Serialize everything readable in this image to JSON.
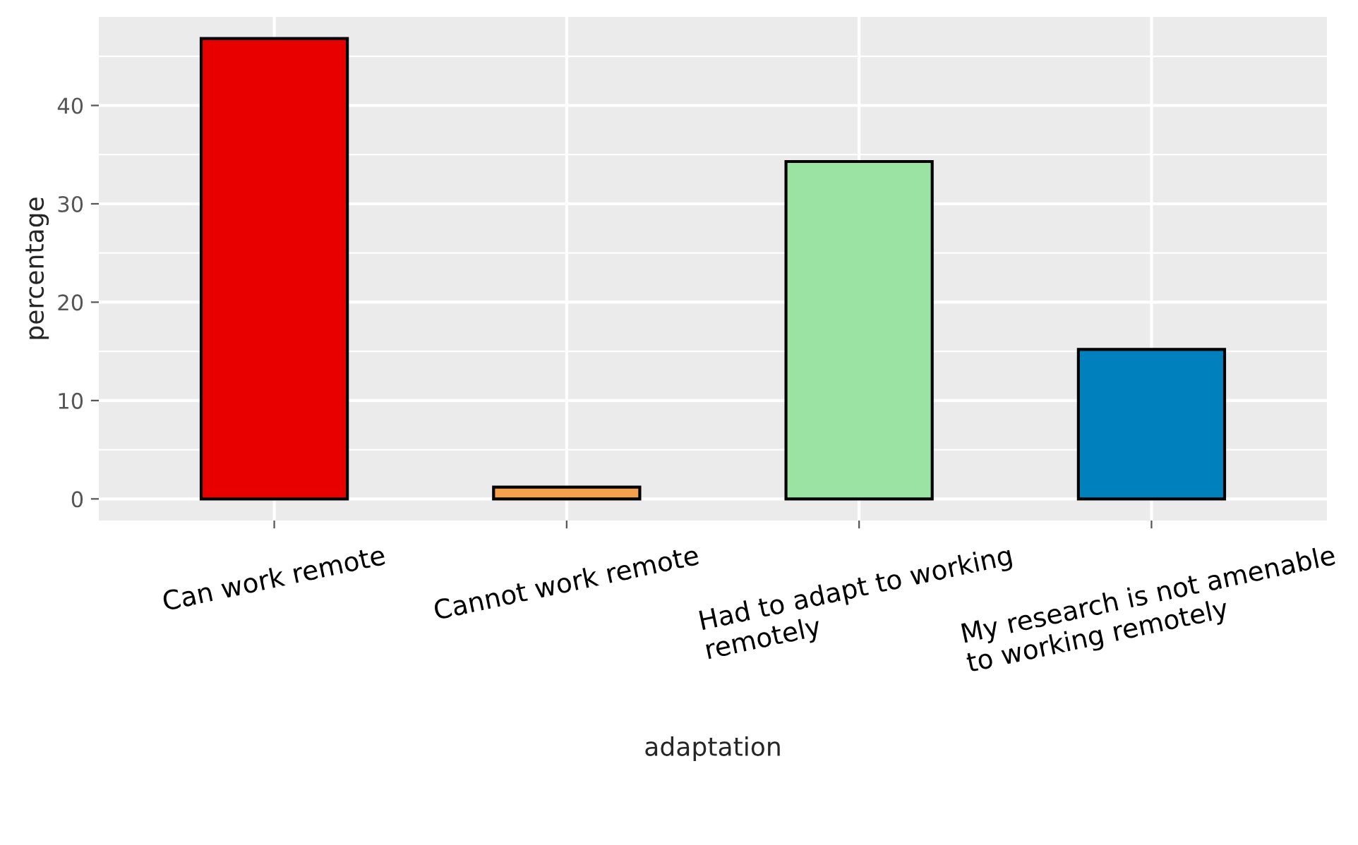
{
  "chart_data": {
    "type": "bar",
    "xlabel": "adaptation",
    "ylabel": "percentage",
    "categories": [
      "Can work remote",
      "Cannot work remote",
      "Had to adapt to working\nremotely",
      "My research is not amenable\nto working remotely"
    ],
    "values": [
      46.8,
      1.2,
      34.3,
      15.2
    ],
    "colors": [
      "#e80000",
      "#f5a04a",
      "#9ae3a3",
      "#0080bd"
    ],
    "ylim": [
      -2.2,
      49
    ],
    "yticks": [
      0,
      10,
      20,
      30,
      40
    ],
    "grid": true
  }
}
